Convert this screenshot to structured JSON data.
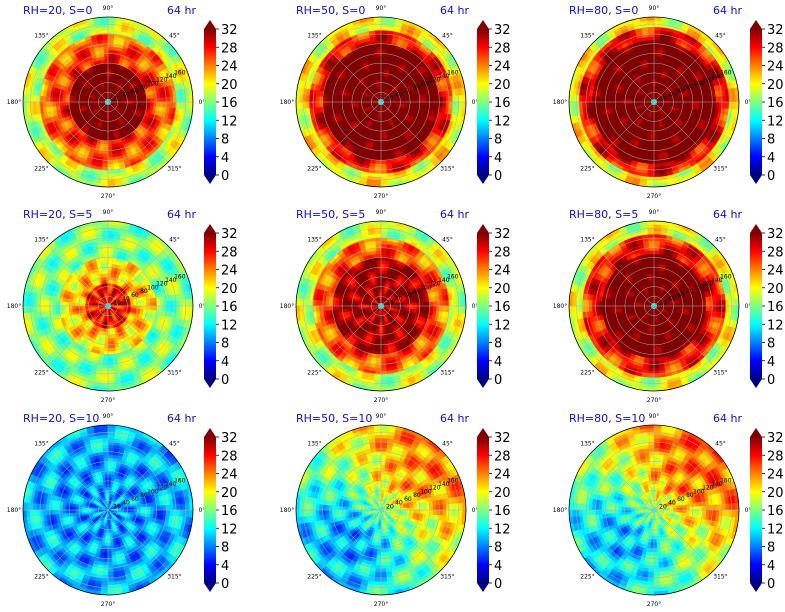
{
  "figure": {
    "time_label": "64 hr"
  },
  "colors": {
    "title": "#1010c8",
    "colormap": [
      "#00007f",
      "#0000ff",
      "#007fff",
      "#00ffff",
      "#7fff7f",
      "#ffff00",
      "#ff7f00",
      "#ff0000",
      "#7f0000"
    ]
  },
  "chart_data": [
    {
      "type": "heatmap",
      "projection": "polar",
      "title": "RH=20, S=0",
      "time": "64 hr",
      "theta_labels": [
        "90°",
        "45°",
        "0°",
        "315°",
        "270°",
        "225°",
        "180°",
        "135°"
      ],
      "r_labels": [
        "20",
        "40",
        "60",
        "80",
        "100",
        "120",
        "140",
        "160"
      ],
      "colorbar": {
        "ticks": [
          "0",
          "4",
          "8",
          "12",
          "16",
          "20",
          "24",
          "28",
          "32"
        ],
        "range": [
          0,
          32
        ],
        "extend": "both"
      },
      "field": {
        "eye_value": 12,
        "core_value": 34,
        "core_radius": 80,
        "ring_value": 24,
        "ring_radius": 140,
        "outer_value": 18,
        "asymmetry": "none"
      }
    },
    {
      "type": "heatmap",
      "projection": "polar",
      "title": "RH=50, S=0",
      "time": "64 hr",
      "theta_labels": [
        "90°",
        "45°",
        "0°",
        "315°",
        "270°",
        "225°",
        "180°",
        "135°"
      ],
      "r_labels": [
        "20",
        "40",
        "60",
        "80",
        "100",
        "120",
        "140",
        "160"
      ],
      "colorbar": {
        "ticks": [
          "0",
          "4",
          "8",
          "12",
          "16",
          "20",
          "24",
          "28",
          "32"
        ],
        "range": [
          0,
          32
        ],
        "extend": "both"
      },
      "field": {
        "eye_value": 12,
        "core_value": 34,
        "core_radius": 120,
        "ring_value": 26,
        "ring_radius": 150,
        "outer_value": 20,
        "asymmetry": "none"
      }
    },
    {
      "type": "heatmap",
      "projection": "polar",
      "title": "RH=80, S=0",
      "time": "64 hr",
      "theta_labels": [
        "90°",
        "45°",
        "0°",
        "315°",
        "270°",
        "225°",
        "180°",
        "135°"
      ],
      "r_labels": [
        "20",
        "40",
        "60",
        "80",
        "100",
        "120",
        "140",
        "160"
      ],
      "colorbar": {
        "ticks": [
          "0",
          "4",
          "8",
          "12",
          "16",
          "20",
          "24",
          "28",
          "32"
        ],
        "range": [
          0,
          32
        ],
        "extend": "both"
      },
      "field": {
        "eye_value": 12,
        "core_value": 34,
        "core_radius": 125,
        "ring_value": 27,
        "ring_radius": 155,
        "outer_value": 20,
        "asymmetry": "none"
      }
    },
    {
      "type": "heatmap",
      "projection": "polar",
      "title": "RH=20, S=5",
      "time": "64 hr",
      "theta_labels": [
        "90°",
        "45°",
        "0°",
        "315°",
        "270°",
        "225°",
        "180°",
        "135°"
      ],
      "r_labels": [
        "20",
        "40",
        "60",
        "80",
        "100",
        "120",
        "140",
        "160"
      ],
      "colorbar": {
        "ticks": [
          "0",
          "4",
          "8",
          "12",
          "16",
          "20",
          "24",
          "28",
          "32"
        ],
        "range": [
          0,
          32
        ],
        "extend": "both"
      },
      "field": {
        "eye_value": 12,
        "core_value": 28,
        "core_radius": 50,
        "ring_value": 20,
        "ring_radius": 100,
        "outer_value": 16,
        "asymmetry": "none"
      }
    },
    {
      "type": "heatmap",
      "projection": "polar",
      "title": "RH=50, S=5",
      "time": "64 hr",
      "theta_labels": [
        "90°",
        "45°",
        "0°",
        "315°",
        "270°",
        "225°",
        "180°",
        "135°"
      ],
      "r_labels": [
        "20",
        "40",
        "60",
        "80",
        "100",
        "120",
        "140",
        "160"
      ],
      "colorbar": {
        "ticks": [
          "0",
          "4",
          "8",
          "12",
          "16",
          "20",
          "24",
          "28",
          "32"
        ],
        "range": [
          0,
          32
        ],
        "extend": "both"
      },
      "field": {
        "eye_value": 12,
        "core_value": 31,
        "core_radius": 100,
        "ring_value": 24,
        "ring_radius": 140,
        "outer_value": 18,
        "asymmetry": "none"
      }
    },
    {
      "type": "heatmap",
      "projection": "polar",
      "title": "RH=80, S=5",
      "time": "64 hr",
      "theta_labels": [
        "90°",
        "45°",
        "0°",
        "315°",
        "270°",
        "225°",
        "180°",
        "135°"
      ],
      "r_labels": [
        "20",
        "40",
        "60",
        "80",
        "100",
        "120",
        "140",
        "160"
      ],
      "colorbar": {
        "ticks": [
          "0",
          "4",
          "8",
          "12",
          "16",
          "20",
          "24",
          "28",
          "32"
        ],
        "range": [
          0,
          32
        ],
        "extend": "both"
      },
      "field": {
        "eye_value": 12,
        "core_value": 34,
        "core_radius": 110,
        "ring_value": 26,
        "ring_radius": 150,
        "outer_value": 19,
        "asymmetry": "none"
      }
    },
    {
      "type": "heatmap",
      "projection": "polar",
      "title": "RH=20, S=10",
      "time": "64 hr",
      "theta_labels": [
        "90°",
        "45°",
        "0°",
        "315°",
        "270°",
        "225°",
        "180°",
        "135°"
      ],
      "r_labels": [
        "20",
        "40",
        "60",
        "80",
        "100",
        "120",
        "140",
        "160"
      ],
      "colorbar": {
        "ticks": [
          "0",
          "4",
          "8",
          "12",
          "16",
          "20",
          "24",
          "28",
          "32"
        ],
        "range": [
          0,
          32
        ],
        "extend": "both"
      },
      "field": {
        "eye_value": 8,
        "core_value": 9,
        "core_radius": 60,
        "ring_value": 9,
        "ring_radius": 120,
        "outer_value": 10,
        "asymmetry": "none"
      }
    },
    {
      "type": "heatmap",
      "projection": "polar",
      "title": "RH=50, S=10",
      "time": "64 hr",
      "theta_labels": [
        "90°",
        "45°",
        "0°",
        "315°",
        "270°",
        "225°",
        "180°",
        "135°"
      ],
      "r_labels": [
        "20",
        "40",
        "60",
        "80",
        "100",
        "120",
        "140",
        "160"
      ],
      "colorbar": {
        "ticks": [
          "0",
          "4",
          "8",
          "12",
          "16",
          "20",
          "24",
          "28",
          "32"
        ],
        "range": [
          0,
          32
        ],
        "extend": "both"
      },
      "field": {
        "eye_value": 14,
        "core_value": 16,
        "core_radius": 60,
        "ring_value": 16,
        "ring_radius": 120,
        "outer_value": 17,
        "asymmetry": "northeast-high-west-low"
      }
    },
    {
      "type": "heatmap",
      "projection": "polar",
      "title": "RH=80, S=10",
      "time": "64 hr",
      "theta_labels": [
        "90°",
        "45°",
        "0°",
        "315°",
        "270°",
        "225°",
        "180°",
        "135°"
      ],
      "r_labels": [
        "20",
        "40",
        "60",
        "80",
        "100",
        "120",
        "140",
        "160"
      ],
      "colorbar": {
        "ticks": [
          "0",
          "4",
          "8",
          "12",
          "16",
          "20",
          "24",
          "28",
          "32"
        ],
        "range": [
          0,
          32
        ],
        "extend": "both"
      },
      "field": {
        "eye_value": 14,
        "core_value": 17,
        "core_radius": 60,
        "ring_value": 17,
        "ring_radius": 120,
        "outer_value": 18,
        "asymmetry": "northeast-high-west-low"
      }
    }
  ]
}
